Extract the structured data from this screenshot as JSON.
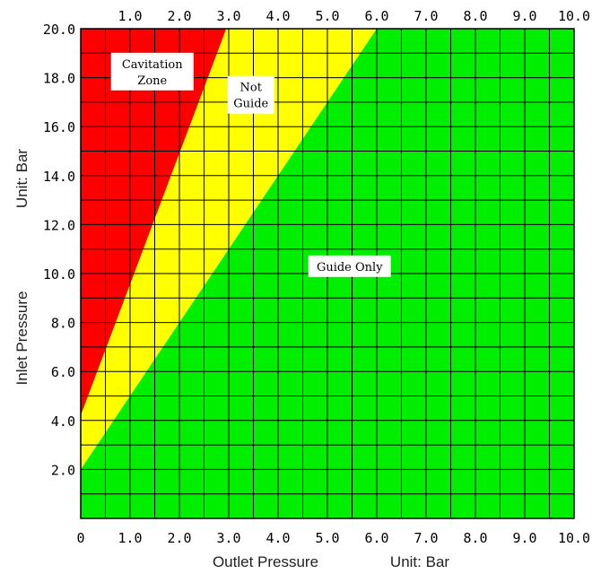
{
  "chart_data": {
    "type": "area",
    "xlabel": "Outlet Pressure",
    "xunit": "Unit: Bar",
    "ylabel": "Inlet Pressure",
    "yunit": "Unit: Bar",
    "xlim": [
      0,
      10
    ],
    "ylim": [
      0,
      20
    ],
    "x_ticks_top": [
      "1.0",
      "2.0",
      "3.0",
      "4.0",
      "5.0",
      "6.0",
      "7.0",
      "8.0",
      "9.0",
      "10.0"
    ],
    "x_ticks_bottom": [
      "0",
      "1.0",
      "2.0",
      "3.0",
      "4.0",
      "5.0",
      "6.0",
      "7.0",
      "8.0",
      "9.0",
      "10.0"
    ],
    "y_ticks": [
      "2.0",
      "4.0",
      "6.0",
      "8.0",
      "10.0",
      "12.0",
      "14.0",
      "16.0",
      "18.0",
      "20.0"
    ],
    "grid": true,
    "grid_step": {
      "x": 0.5,
      "y": 1
    },
    "regions": [
      {
        "name": "Cavitation Zone",
        "lines": [
          "Cavitation",
          "Zone"
        ],
        "color": "#ff0000",
        "polygon": [
          [
            0,
            20
          ],
          [
            2.95,
            20
          ],
          [
            0,
            4.2
          ]
        ],
        "label_at": [
          1.45,
          18.25
        ]
      },
      {
        "name": "Not Guide",
        "lines": [
          "Not",
          "Guide"
        ],
        "color": "#ffff00",
        "polygon": [
          [
            2.95,
            20
          ],
          [
            6.0,
            20
          ],
          [
            0,
            2.0
          ],
          [
            0,
            4.2
          ]
        ],
        "label_at": [
          3.45,
          17.3
        ]
      },
      {
        "name": "Guide Only",
        "lines": [
          "Guide Only"
        ],
        "color": "#00ee00",
        "polygon": [
          [
            6.0,
            20
          ],
          [
            10,
            20
          ],
          [
            10,
            0
          ],
          [
            0,
            0
          ],
          [
            0,
            2.0
          ]
        ],
        "label_at": [
          5.45,
          10.3
        ]
      }
    ]
  }
}
